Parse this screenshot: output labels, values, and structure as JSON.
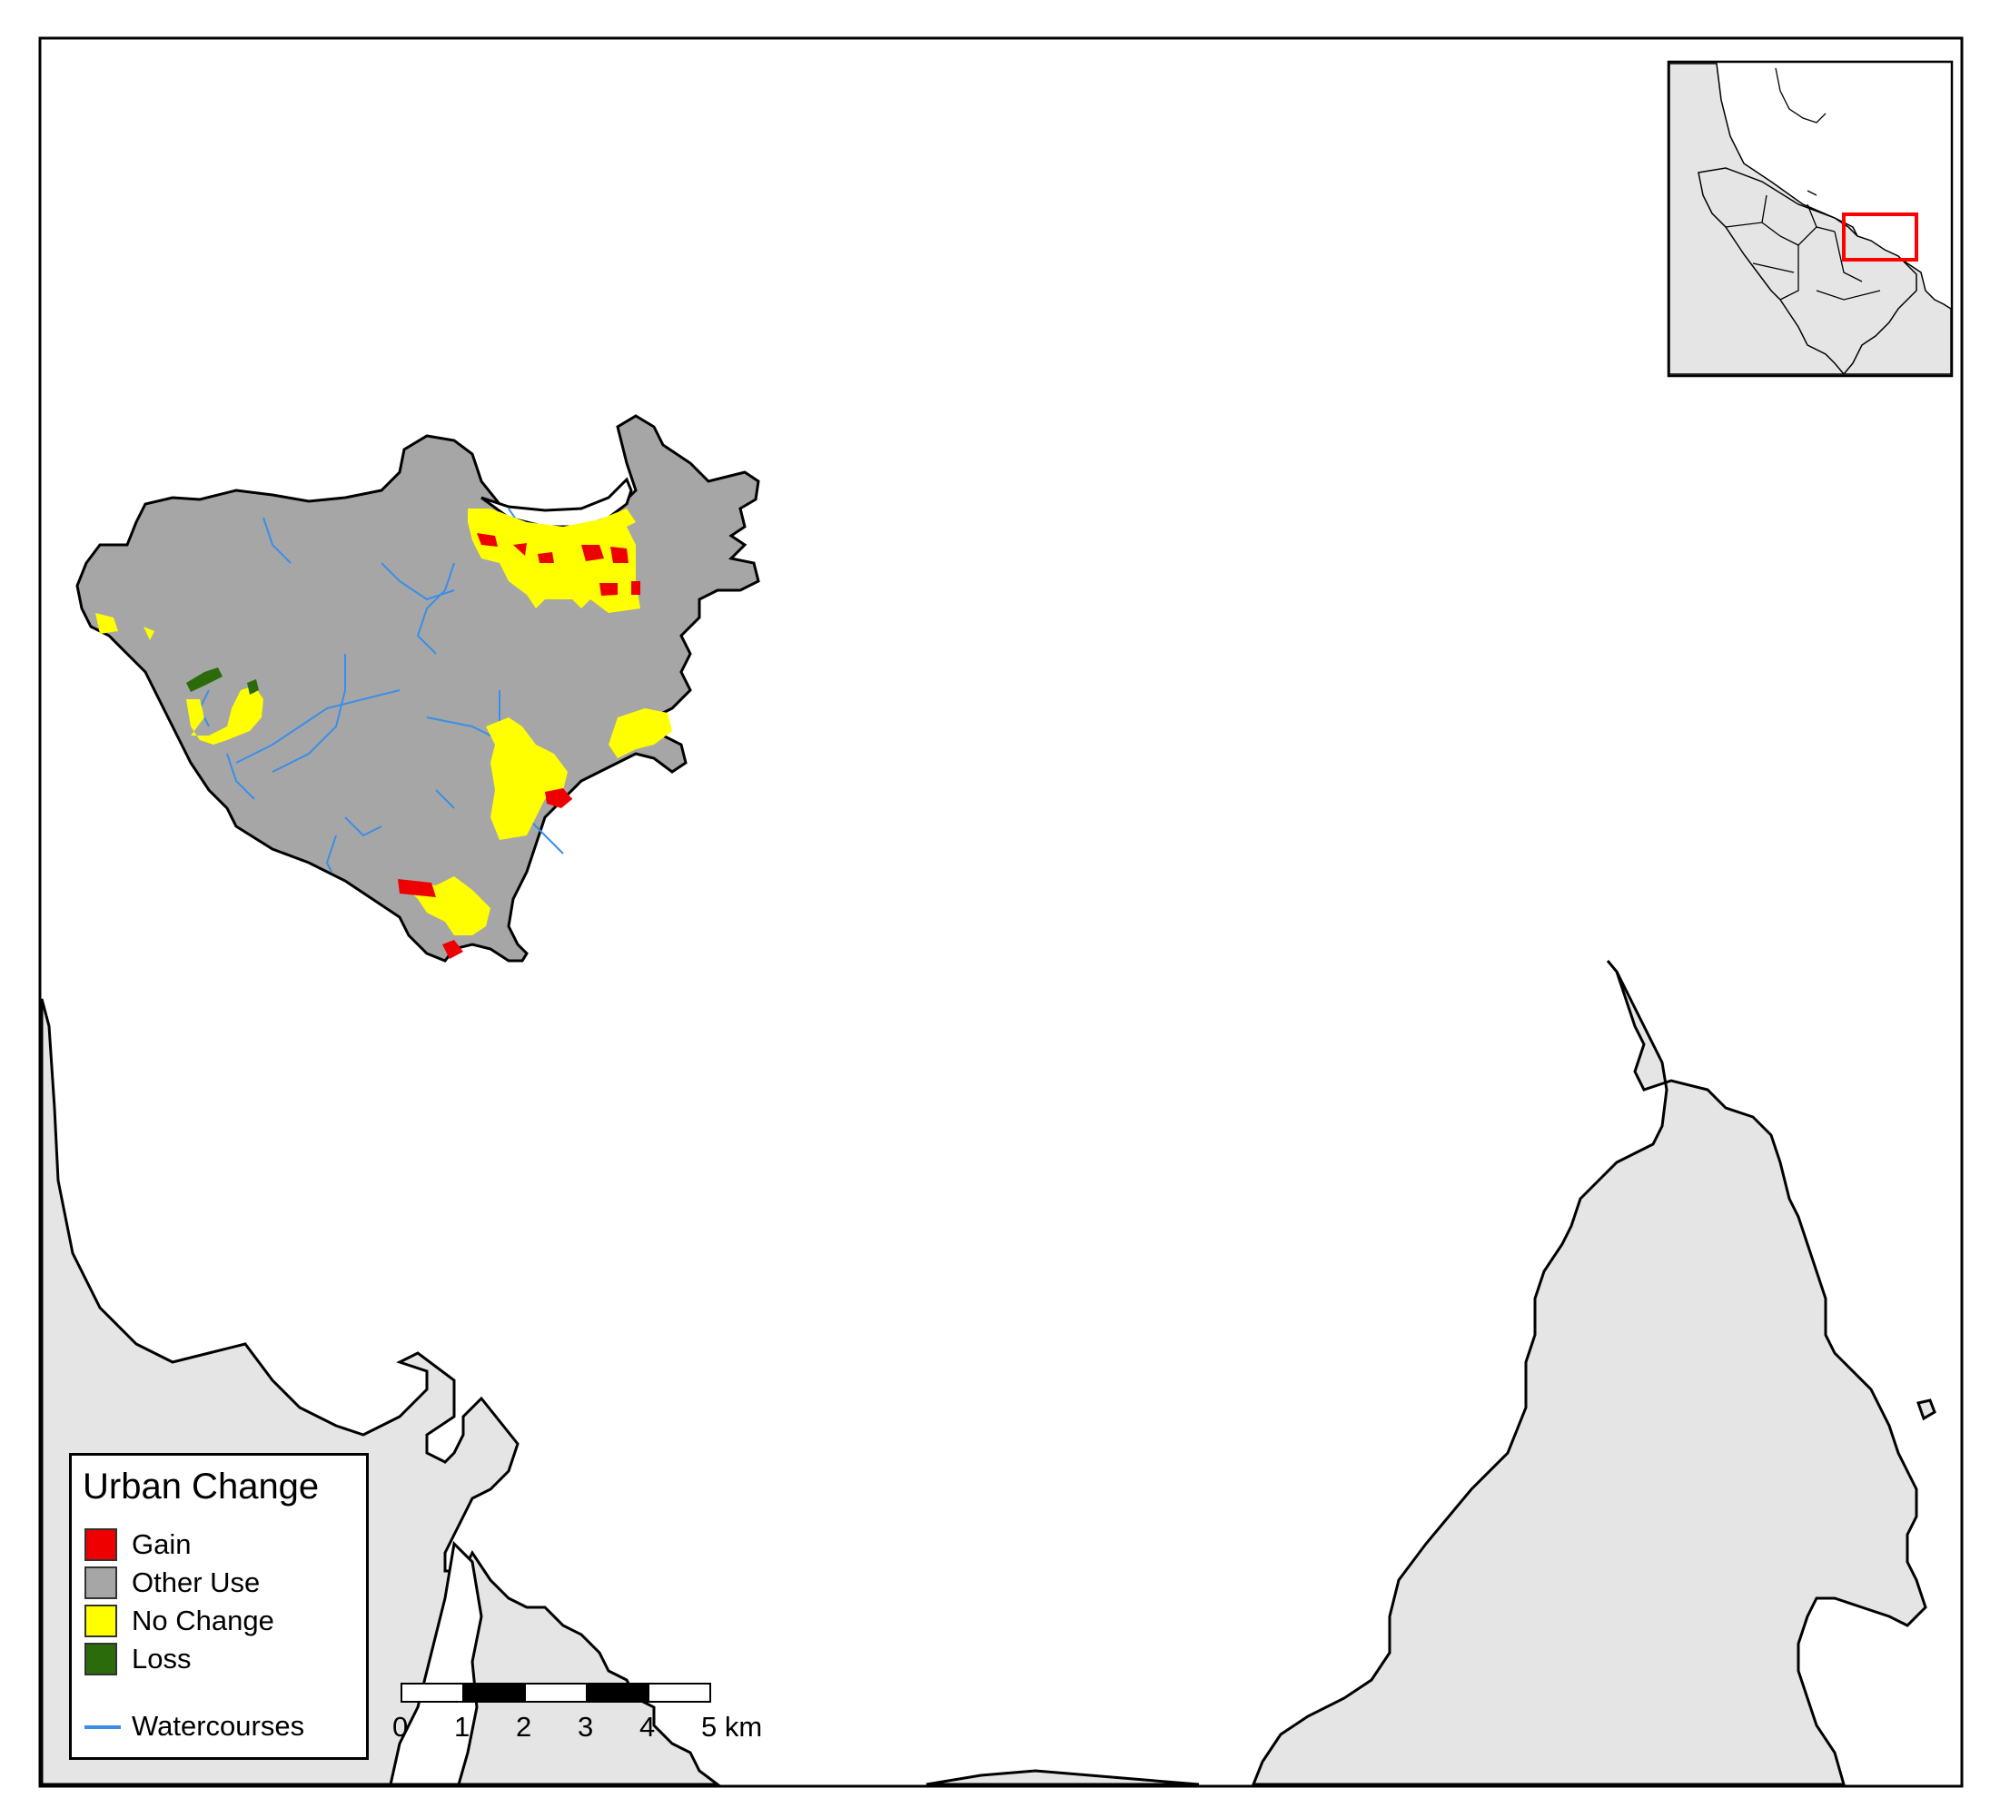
{
  "legend": {
    "title": "Urban Change",
    "items": [
      {
        "label": "Gain",
        "color": "#ee0000"
      },
      {
        "label": "Other Use",
        "color": "#a6a6a6"
      },
      {
        "label": "No Change",
        "color": "#ffff00"
      },
      {
        "label": "Loss",
        "color": "#2b6b0c"
      }
    ],
    "line_item": {
      "label": "Watercourses",
      "color": "#3b8ee8"
    }
  },
  "scale_bar": {
    "ticks": [
      "0",
      "1",
      "2",
      "3",
      "4",
      "5 km"
    ]
  },
  "colors": {
    "land": "#e5e5e5",
    "study_area": "#a6a6a6",
    "inset_highlight": "#ff0000",
    "water": "#ffffff"
  },
  "icons": {
    "inset_map": "locator-map-icon",
    "frame": "map-frame"
  }
}
